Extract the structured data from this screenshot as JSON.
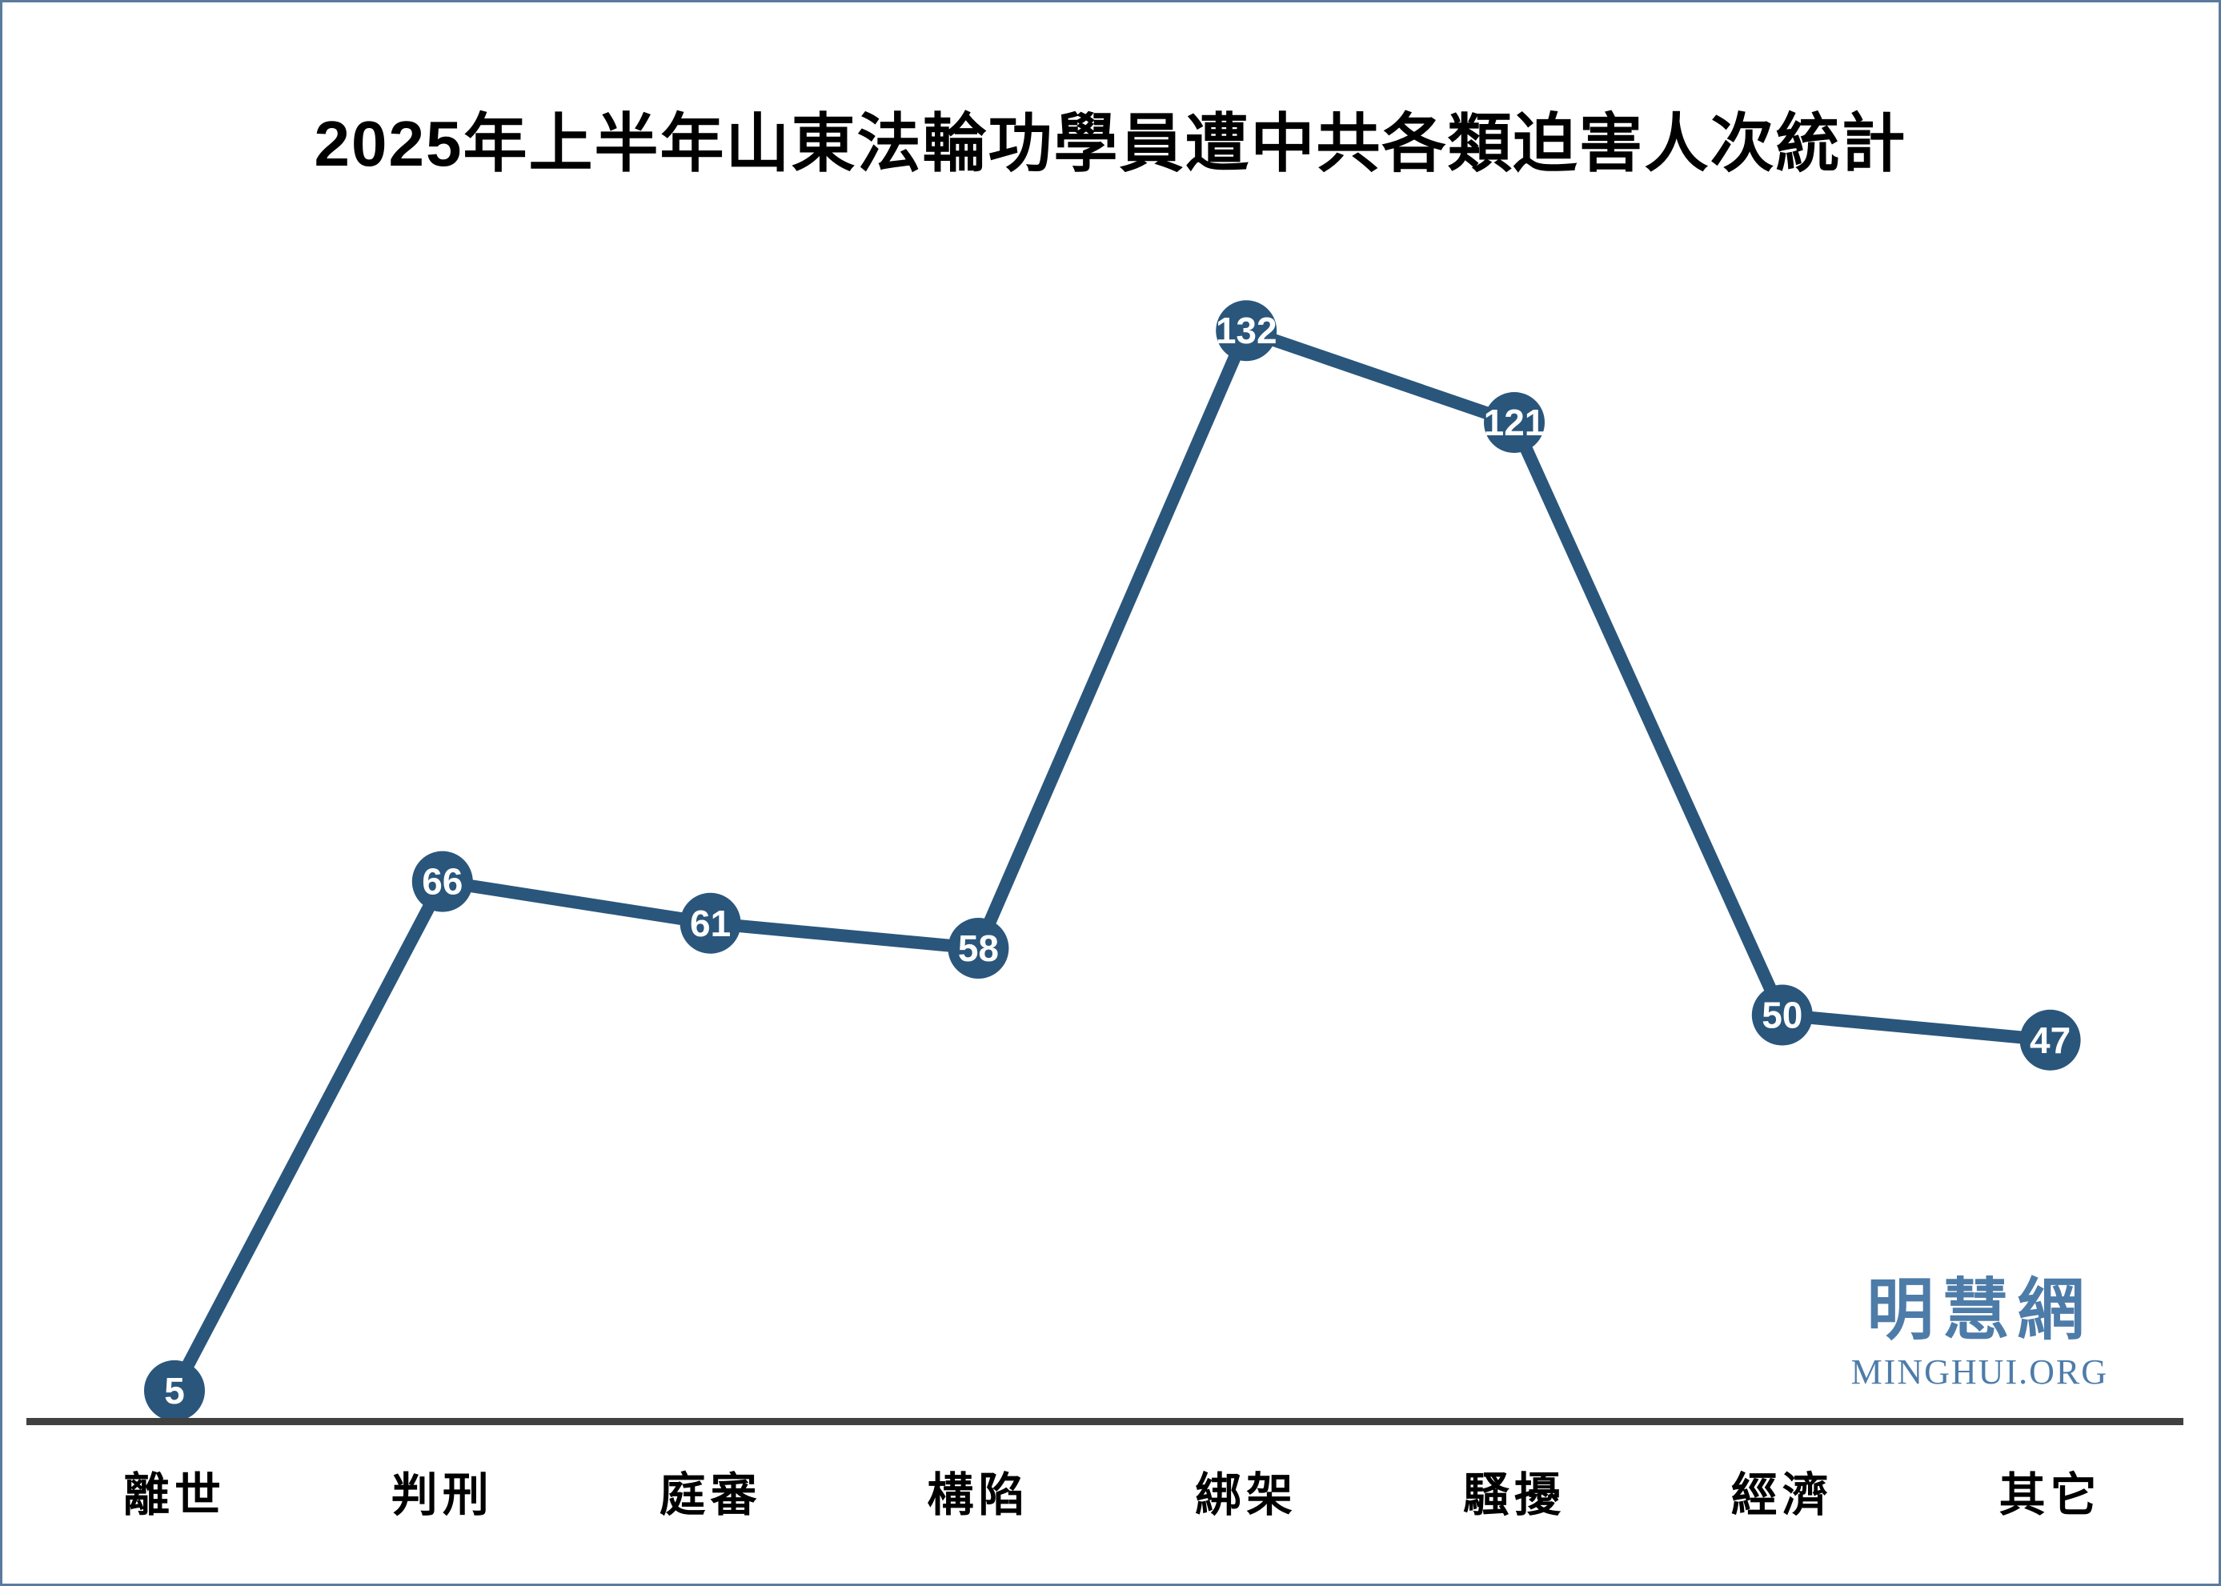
{
  "title": "2025年上半年山東法輪功學員遭中共各類迫害人次統計",
  "watermark": {
    "logo": "明慧網",
    "url": "MINGHUI.ORG"
  },
  "colors": {
    "line": "#2A567C",
    "marker_fill": "#2A567C",
    "marker_text": "#FFFFFF",
    "axis_line": "#404040",
    "title_text": "#000000",
    "label_text": "#000000",
    "watermark_text": "#4E7CA9",
    "border": "#5B7B9D",
    "background": "#FFFFFF"
  },
  "chart_data": {
    "type": "line",
    "title": "2025年上半年山東法輪功學員遭中共各類迫害人次統計",
    "categories": [
      "離世",
      "判刑",
      "庭審",
      "構陷",
      "綁架",
      "騷擾",
      "經濟",
      "其它"
    ],
    "values": [
      5,
      66,
      61,
      58,
      132,
      121,
      50,
      47
    ],
    "series_name": "迫害人次",
    "xlabel": "",
    "ylabel": "",
    "ylim": [
      0,
      140
    ],
    "grid": false,
    "legend_position": "none",
    "data_labels": "inside-marker",
    "marker_style": "filled-circle",
    "y_axis_visible": false,
    "x_axis_visible": true
  }
}
